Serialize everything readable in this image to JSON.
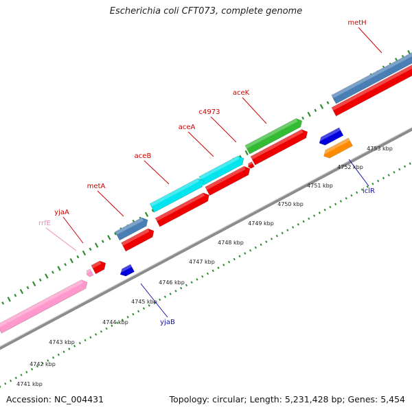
{
  "title": "Escherichia coli CFT073, complete genome",
  "footer": {
    "accession": "Accession: NC_004431",
    "topology": "Topology: circular; Length: 5,231,428 bp; Genes: 5,454"
  },
  "colors": {
    "backbone": "#8c8c8c",
    "ticks": "#2e8b2e",
    "gene_label_red": "#cc0000",
    "gene_label_blue": "#1111aa",
    "gene_label_pink": "#ee88bb",
    "red": "#ee0000",
    "steelblue": "#4a7fb5",
    "cyan": "#00e5ee",
    "green": "#33bb33",
    "pink": "#ff99cc",
    "blue": "#0000dd",
    "orange": "#ff8c00"
  },
  "scale_labels": [
    "4741 kbp",
    "4742 kbp",
    "4743 kbp",
    "4744 kbp",
    "4745 kbp",
    "4746 kbp",
    "4747 kbp",
    "4748 kbp",
    "4749 kbp",
    "4750 kbp",
    "4751 kbp",
    "4752 kbp",
    "4753 kbp"
  ],
  "genes": [
    {
      "label": "metH",
      "color": "gene_label_red"
    },
    {
      "label": "aceK",
      "color": "gene_label_red"
    },
    {
      "label": "c4973",
      "color": "gene_label_red"
    },
    {
      "label": "aceA",
      "color": "gene_label_red"
    },
    {
      "label": "aceB",
      "color": "gene_label_red"
    },
    {
      "label": "metA",
      "color": "gene_label_red"
    },
    {
      "label": "yjaA",
      "color": "gene_label_red"
    },
    {
      "label": "rrfE",
      "color": "gene_label_pink"
    },
    {
      "label": "yjaB",
      "color": "gene_label_blue"
    },
    {
      "label": "iclR",
      "color": "gene_label_blue"
    }
  ]
}
